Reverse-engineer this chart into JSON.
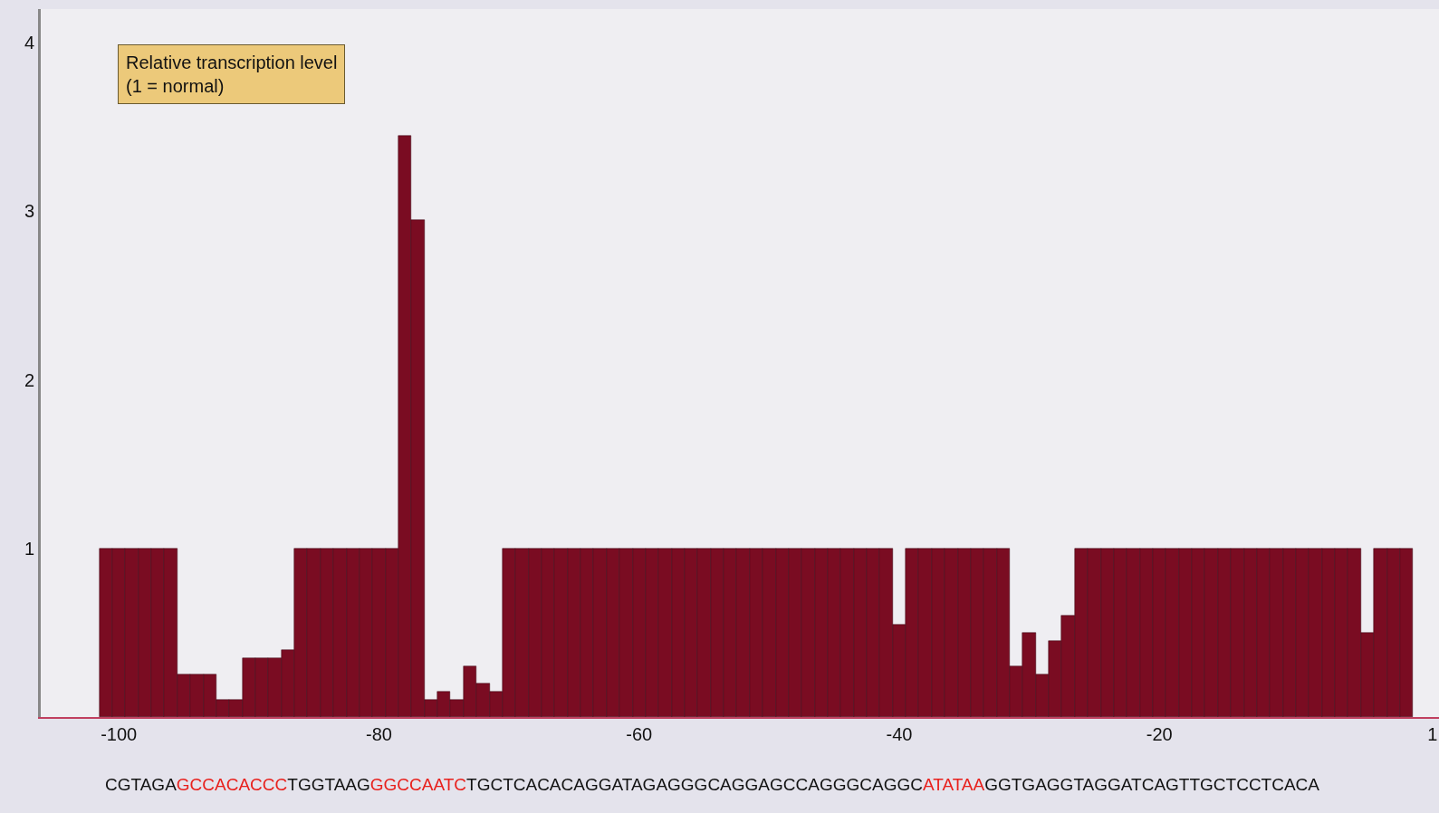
{
  "chart_data": {
    "type": "bar",
    "ylabel": "Relative transcription level\n(1 = normal)",
    "x": [
      -101,
      -100,
      -99,
      -98,
      -97,
      -96,
      -95,
      -94,
      -93,
      -92,
      -91,
      -90,
      -89,
      -88,
      -87,
      -86,
      -85,
      -84,
      -83,
      -82,
      -81,
      -80,
      -79,
      -78,
      -77,
      -76,
      -75,
      -74,
      -73,
      -72,
      -71,
      -70,
      -69,
      -68,
      -67,
      -66,
      -65,
      -64,
      -63,
      -62,
      -61,
      -60,
      -59,
      -58,
      -57,
      -56,
      -55,
      -54,
      -53,
      -52,
      -51,
      -50,
      -49,
      -48,
      -47,
      -46,
      -45,
      -44,
      -43,
      -42,
      -41,
      -40,
      -39,
      -38,
      -37,
      -36,
      -35,
      -34,
      -33,
      -32,
      -31,
      -30,
      -29,
      -28,
      -27,
      -26,
      -25,
      -24,
      -23,
      -22,
      -21,
      -20,
      -19,
      -18,
      -17,
      -16,
      -15,
      -14,
      -13,
      -12,
      -11,
      -10,
      -9,
      -8,
      -7,
      -6,
      -5,
      -4,
      -3,
      -2,
      -1
    ],
    "values": [
      1,
      1,
      1,
      1,
      1,
      1,
      0.25,
      0.25,
      0.25,
      0.1,
      0.1,
      0.35,
      0.35,
      0.35,
      0.4,
      1,
      1,
      1,
      1,
      1,
      1,
      1,
      1,
      3.45,
      2.95,
      0.1,
      0.15,
      0.1,
      0.3,
      0.2,
      0.15,
      1,
      1,
      1,
      1,
      1,
      1,
      1,
      1,
      1,
      1,
      1,
      1,
      1,
      1,
      1,
      1,
      1,
      1,
      1,
      1,
      1,
      1,
      1,
      1,
      1,
      1,
      1,
      1,
      1,
      1,
      0.55,
      1,
      1,
      1,
      1,
      1,
      1,
      1,
      1,
      0.3,
      0.5,
      0.25,
      0.45,
      0.6,
      1,
      1,
      1,
      1,
      1,
      1,
      1,
      1,
      1,
      1,
      1,
      1,
      1,
      1,
      1,
      1,
      1,
      1,
      1,
      1,
      1,
      1,
      0.5,
      1,
      1,
      1
    ],
    "color": "#7a0c22",
    "xlim": [
      -106,
      1.5
    ],
    "xticks": [
      -100,
      -80,
      -60,
      -40,
      -20,
      1
    ],
    "ylim": [
      0,
      4.2
    ],
    "yticks": [
      1,
      2,
      3,
      4
    ],
    "grid": false,
    "annotations": [
      "CGTAGA",
      "GCCACACCC",
      "TGGTAAG",
      "GGCCAATC",
      "TGCTCACACAGGATAGAGGGCAGGAGCCAGGGCAGGC",
      "ATATAA",
      "GGTGAGGTAGGATCAGTTGCTCCTCACA"
    ]
  }
}
